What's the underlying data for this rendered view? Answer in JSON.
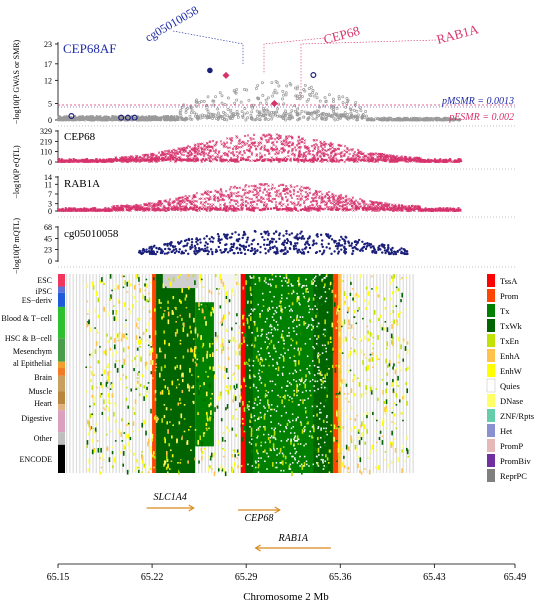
{
  "colors": {
    "gwas_grey": "#9a9a9a",
    "eqtl_pink": "#d6336c",
    "mqtl_navy": "#1a1f7a",
    "threshold_red": "#d6336c",
    "label_blue": "#1f2aa8",
    "label_red": "#d6336c",
    "gene_orange": "#d98a1a"
  },
  "chart_data": [
    {
      "panel": "gwas",
      "type": "scatter",
      "title": "CEP68AF",
      "ylabel": "−log10(P GWAS or SMR)",
      "ylim": [
        0,
        23
      ],
      "yticks": [
        0,
        5,
        12,
        17,
        23
      ],
      "xlim": [
        65.15,
        65.49
      ],
      "threshold_lines": [
        {
          "label": "pMSMR = 0.0013",
          "y": 2.9
        },
        {
          "label": "pESMR = 0.002",
          "y": 2.7
        }
      ],
      "highlighted_points": [
        {
          "name": "cg05010058",
          "x": 65.263,
          "y": 15.0,
          "style": "filled-navy"
        },
        {
          "name": "CEP68",
          "x": 65.275,
          "y": 13.5,
          "style": "red-diamond"
        },
        {
          "name": "RAB1A",
          "x": 65.311,
          "y": 5.0,
          "style": "red-diamond"
        },
        {
          "name": "",
          "x": 65.34,
          "y": 13.6,
          "style": "open-navy"
        },
        {
          "name": "",
          "x": 65.16,
          "y": 1.2,
          "style": "open-navy"
        },
        {
          "name": "",
          "x": 65.197,
          "y": 0.7,
          "style": "open-navy"
        },
        {
          "name": "",
          "x": 65.202,
          "y": 0.7,
          "style": "open-navy"
        },
        {
          "name": "",
          "x": 65.207,
          "y": 0.7,
          "style": "open-navy"
        }
      ]
    },
    {
      "panel": "eqtl_cep68",
      "type": "scatter",
      "title": "CEP68",
      "ylabel": "−log10(P eQTL)",
      "ylim": [
        0,
        329
      ],
      "yticks": [
        0,
        110,
        219,
        329
      ]
    },
    {
      "panel": "eqtl_rab1a",
      "type": "scatter",
      "title": "RAB1A",
      "ylim": [
        0,
        14
      ],
      "yticks": [
        0,
        3,
        7,
        11,
        14
      ]
    },
    {
      "panel": "mqtl",
      "type": "scatter",
      "title": "cg05010058",
      "ylabel": "−log10(P mQTL)",
      "ylim": [
        0,
        68
      ],
      "yticks": [
        0,
        23,
        45,
        68
      ]
    },
    {
      "panel": "chromatin",
      "type": "heatmap",
      "row_groups": [
        "ESC",
        "iPSC",
        "ES−deriv",
        "Blood & T−cell",
        "HSC & B−cell",
        "Mesenchym",
        "al Epithelial",
        "Brain",
        "Muscle",
        "Heart",
        "Digestive",
        "Other",
        "ENCODE"
      ],
      "states": [
        {
          "name": "TssA",
          "color": "#ff0000"
        },
        {
          "name": "Prom",
          "color": "#ff4500"
        },
        {
          "name": "Tx",
          "color": "#008000"
        },
        {
          "name": "TxWk",
          "color": "#006400"
        },
        {
          "name": "TxEn",
          "color": "#c2e105"
        },
        {
          "name": "EnhA",
          "color": "#ffc34d"
        },
        {
          "name": "EnhW",
          "color": "#ffff00"
        },
        {
          "name": "Quies",
          "color": "#ffffff"
        },
        {
          "name": "DNase",
          "color": "#ffff66"
        },
        {
          "name": "ZNF/Rpts",
          "color": "#66cdaa"
        },
        {
          "name": "Het",
          "color": "#8a91d0"
        },
        {
          "name": "PromP",
          "color": "#e6b8b7"
        },
        {
          "name": "PromBiv",
          "color": "#7030a0"
        },
        {
          "name": "ReprPC",
          "color": "#808080"
        }
      ]
    },
    {
      "panel": "genes",
      "type": "gene-track",
      "genes": [
        {
          "name": "SLC1A4",
          "start": 65.216,
          "end": 65.251,
          "strand": "+"
        },
        {
          "name": "CEP68",
          "start": 65.284,
          "end": 65.315,
          "strand": "+"
        },
        {
          "name": "RAB1A",
          "start": 65.297,
          "end": 65.353,
          "strand": "-"
        }
      ]
    },
    {
      "panel": "x-axis",
      "type": "axis",
      "xlabel": "Chromosome 2 Mb",
      "xlim": [
        65.15,
        65.49
      ],
      "xticks": [
        "65.15",
        "65.22",
        "65.29",
        "65.36",
        "65.43",
        "65.49"
      ]
    }
  ]
}
